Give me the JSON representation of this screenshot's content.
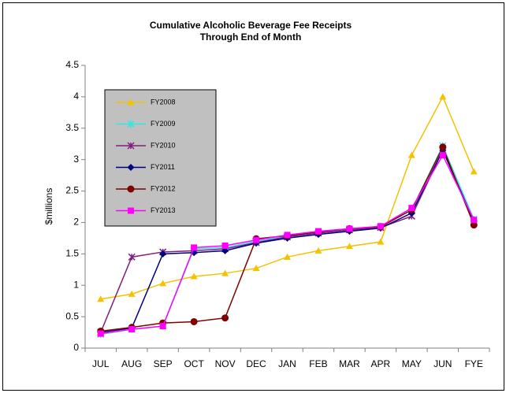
{
  "chart_data": {
    "type": "line",
    "title": [
      "Cumulative Alcoholic Beverage Fee Receipts",
      "Through End of Month"
    ],
    "y_label": "$millions",
    "categories": [
      "JUL",
      "AUG",
      "SEP",
      "OCT",
      "NOV",
      "DEC",
      "JAN",
      "FEB",
      "MAR",
      "APR",
      "MAY",
      "JUN",
      "FYE"
    ],
    "ylim": [
      0,
      4.5
    ],
    "yticks": [
      0,
      0.5,
      1,
      1.5,
      2,
      2.5,
      3,
      3.5,
      4,
      4.5
    ],
    "grid": false,
    "legend": "upper left",
    "series": [
      {
        "name": "FY2008",
        "color": "#f5c100",
        "marker": "triangle",
        "values": [
          0.78,
          0.86,
          1.03,
          1.14,
          1.19,
          1.27,
          1.45,
          1.55,
          1.62,
          1.69,
          3.07,
          4.0,
          2.81
        ]
      },
      {
        "name": "FY2009",
        "color": "#33e6e6",
        "marker": "asterisk",
        "values": [
          0.22,
          0.3,
          0.35,
          1.58,
          1.6,
          1.7,
          1.78,
          1.84,
          1.89,
          1.93,
          2.2,
          3.22,
          2.05
        ]
      },
      {
        "name": "FY2010",
        "color": "#7f1f7f",
        "marker": "xstar",
        "values": [
          0.25,
          1.45,
          1.53,
          1.55,
          1.58,
          1.68,
          1.77,
          1.83,
          1.88,
          1.92,
          2.1,
          3.15,
          2.0
        ]
      },
      {
        "name": "FY2011",
        "color": "#000080",
        "marker": "diamond",
        "values": [
          0.25,
          0.32,
          1.5,
          1.52,
          1.55,
          1.67,
          1.75,
          1.81,
          1.86,
          1.91,
          2.15,
          3.15,
          2.02
        ]
      },
      {
        "name": "FY2012",
        "color": "#800000",
        "marker": "circle",
        "values": [
          0.27,
          0.33,
          0.4,
          0.42,
          0.48,
          1.74,
          1.79,
          1.85,
          1.9,
          1.93,
          2.2,
          3.2,
          1.96
        ]
      },
      {
        "name": "FY2013",
        "color": "#ff00ff",
        "marker": "square",
        "values": [
          0.23,
          0.3,
          0.35,
          1.6,
          1.63,
          1.72,
          1.8,
          1.86,
          1.9,
          1.94,
          2.23,
          3.07,
          2.04
        ]
      }
    ]
  }
}
